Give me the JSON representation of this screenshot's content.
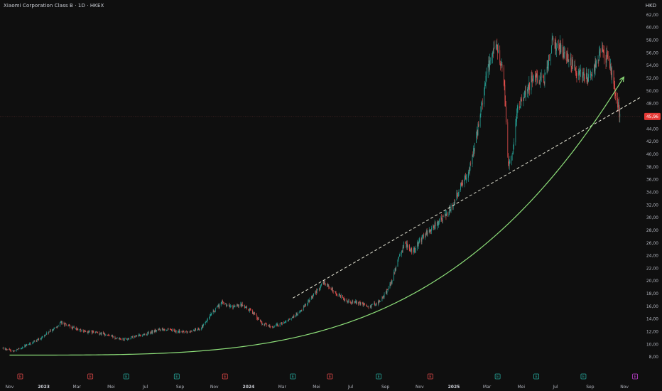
{
  "header": {
    "title": "Xiaomi Corporation Class B · 1D · HKEX",
    "currency": "HKD"
  },
  "colors": {
    "background": "#0f0f0f",
    "up": "#26a69a",
    "down": "#ef5350",
    "curve": "#8ee07a",
    "trendline": "#e8e8d8",
    "price_label_bg": "#e53935",
    "event_earnings_red": "#e04848",
    "event_dividend_green": "#26a69a",
    "event_purple": "#c03fd0"
  },
  "chart_data": {
    "type": "candlestick",
    "x_range": [
      "2022-10-15",
      "2025-11-30"
    ],
    "ylim": [
      6,
      63
    ],
    "y_ticks": [
      {
        "value": 62,
        "label": "62,00"
      },
      {
        "value": 60,
        "label": "60,00"
      },
      {
        "value": 58,
        "label": "58,00"
      },
      {
        "value": 56,
        "label": "56,00"
      },
      {
        "value": 54,
        "label": "54,00"
      },
      {
        "value": 52,
        "label": "52,00"
      },
      {
        "value": 50,
        "label": "50,00"
      },
      {
        "value": 48,
        "label": "48,00"
      },
      {
        "value": 44,
        "label": "44,00"
      },
      {
        "value": 42,
        "label": "42,00"
      },
      {
        "value": 40,
        "label": "40,00"
      },
      {
        "value": 38,
        "label": "38,00"
      },
      {
        "value": 36,
        "label": "36,00"
      },
      {
        "value": 34,
        "label": "34,00"
      },
      {
        "value": 32,
        "label": "32,00"
      },
      {
        "value": 30,
        "label": "30,00"
      },
      {
        "value": 28,
        "label": "28,00"
      },
      {
        "value": 26,
        "label": "26,00"
      },
      {
        "value": 24,
        "label": "24,00"
      },
      {
        "value": 22,
        "label": "22,00"
      },
      {
        "value": 20,
        "label": "20,00"
      },
      {
        "value": 18,
        "label": "18,00"
      },
      {
        "value": 16,
        "label": "16,00"
      },
      {
        "value": 14,
        "label": "14,00"
      },
      {
        "value": 12,
        "label": "12,00"
      },
      {
        "value": 10,
        "label": "10,00"
      },
      {
        "value": 8,
        "label": "8,00"
      }
    ],
    "x_ticks": [
      {
        "date": "2022-11-01",
        "label": "Nov",
        "year": false
      },
      {
        "date": "2023-01-01",
        "label": "2023",
        "year": true
      },
      {
        "date": "2023-03-01",
        "label": "Mar",
        "year": false
      },
      {
        "date": "2023-05-01",
        "label": "Mei",
        "year": false
      },
      {
        "date": "2023-07-01",
        "label": "Jul",
        "year": false
      },
      {
        "date": "2023-09-01",
        "label": "Sep",
        "year": false
      },
      {
        "date": "2023-11-01",
        "label": "Nov",
        "year": false
      },
      {
        "date": "2024-01-01",
        "label": "2024",
        "year": true
      },
      {
        "date": "2024-03-01",
        "label": "Mar",
        "year": false
      },
      {
        "date": "2024-05-01",
        "label": "Mei",
        "year": false
      },
      {
        "date": "2024-07-01",
        "label": "Jul",
        "year": false
      },
      {
        "date": "2024-09-01",
        "label": "Sep",
        "year": false
      },
      {
        "date": "2024-11-01",
        "label": "Nov",
        "year": false
      },
      {
        "date": "2025-01-01",
        "label": "2025",
        "year": true
      },
      {
        "date": "2025-03-01",
        "label": "Mar",
        "year": false
      },
      {
        "date": "2025-05-01",
        "label": "Mei",
        "year": false
      },
      {
        "date": "2025-07-01",
        "label": "Jul",
        "year": false
      },
      {
        "date": "2025-09-01",
        "label": "Sep",
        "year": false
      },
      {
        "date": "2025-11-01",
        "label": "Nov",
        "year": false
      }
    ],
    "price_path": [
      [
        "2022-10-20",
        9.4
      ],
      [
        "2022-11-10",
        8.9
      ],
      [
        "2022-11-30",
        9.8
      ],
      [
        "2022-12-20",
        10.6
      ],
      [
        "2023-01-15",
        12.2
      ],
      [
        "2023-02-01",
        13.4
      ],
      [
        "2023-02-20",
        12.6
      ],
      [
        "2023-03-15",
        12.0
      ],
      [
        "2023-04-10",
        11.8
      ],
      [
        "2023-05-05",
        11.2
      ],
      [
        "2023-05-25",
        10.8
      ],
      [
        "2023-06-15",
        11.3
      ],
      [
        "2023-07-05",
        11.7
      ],
      [
        "2023-07-31",
        12.5
      ],
      [
        "2023-08-20",
        12.1
      ],
      [
        "2023-09-15",
        11.9
      ],
      [
        "2023-10-10",
        12.7
      ],
      [
        "2023-10-31",
        15.2
      ],
      [
        "2023-11-15",
        16.6
      ],
      [
        "2023-12-05",
        15.8
      ],
      [
        "2023-12-20",
        16.2
      ],
      [
        "2024-01-10",
        15.0
      ],
      [
        "2024-01-25",
        13.3
      ],
      [
        "2024-02-10",
        12.7
      ],
      [
        "2024-02-25",
        13.1
      ],
      [
        "2024-03-15",
        14.0
      ],
      [
        "2024-04-05",
        15.4
      ],
      [
        "2024-04-25",
        17.8
      ],
      [
        "2024-05-15",
        19.8
      ],
      [
        "2024-06-05",
        18.0
      ],
      [
        "2024-06-25",
        16.9
      ],
      [
        "2024-07-15",
        16.5
      ],
      [
        "2024-08-05",
        16.0
      ],
      [
        "2024-08-25",
        17.0
      ],
      [
        "2024-09-10",
        19.5
      ],
      [
        "2024-09-25",
        23.5
      ],
      [
        "2024-10-05",
        26.0
      ],
      [
        "2024-10-20",
        24.5
      ],
      [
        "2024-11-05",
        26.8
      ],
      [
        "2024-11-25",
        28.5
      ],
      [
        "2024-12-15",
        30.2
      ],
      [
        "2024-12-31",
        32.0
      ],
      [
        "2025-01-15",
        35.5
      ],
      [
        "2025-01-31",
        38.0
      ],
      [
        "2025-02-15",
        45.0
      ],
      [
        "2025-02-28",
        53.0
      ],
      [
        "2025-03-10",
        55.5
      ],
      [
        "2025-03-20",
        57.0
      ],
      [
        "2025-03-31",
        52.0
      ],
      [
        "2025-04-08",
        38.0
      ],
      [
        "2025-04-15",
        40.0
      ],
      [
        "2025-04-25",
        47.5
      ],
      [
        "2025-05-10",
        50.0
      ],
      [
        "2025-05-25",
        52.5
      ],
      [
        "2025-06-10",
        51.5
      ],
      [
        "2025-06-25",
        57.5
      ],
      [
        "2025-07-10",
        57.0
      ],
      [
        "2025-07-25",
        55.0
      ],
      [
        "2025-08-10",
        53.0
      ],
      [
        "2025-08-25",
        52.0
      ],
      [
        "2025-09-05",
        52.5
      ],
      [
        "2025-09-20",
        56.5
      ],
      [
        "2025-10-05",
        54.5
      ],
      [
        "2025-10-15",
        50.5
      ],
      [
        "2025-10-24",
        45.96
      ]
    ],
    "last_price": {
      "value": 45.96,
      "label": "45,96"
    },
    "trendline": {
      "start": [
        "2024-03-20",
        17.3
      ],
      "end": [
        "2025-11-30",
        49.0
      ],
      "style": "dashed"
    },
    "curve": {
      "start": [
        "2022-11-01",
        8.3
      ],
      "end": [
        "2025-10-31",
        52.2
      ],
      "exponent": 3.6,
      "arrow": true
    },
    "events": [
      {
        "date": "2022-11-20",
        "type": "E",
        "color": "red"
      },
      {
        "date": "2023-03-25",
        "type": "E",
        "color": "red"
      },
      {
        "date": "2023-05-28",
        "type": "E",
        "color": "green"
      },
      {
        "date": "2023-08-26",
        "type": "E",
        "color": "green"
      },
      {
        "date": "2023-11-20",
        "type": "E",
        "color": "red"
      },
      {
        "date": "2024-03-20",
        "type": "E",
        "color": "green"
      },
      {
        "date": "2024-05-25",
        "type": "E",
        "color": "red"
      },
      {
        "date": "2024-08-20",
        "type": "E",
        "color": "green"
      },
      {
        "date": "2024-11-20",
        "type": "E",
        "color": "red"
      },
      {
        "date": "2025-03-20",
        "type": "E",
        "color": "green"
      },
      {
        "date": "2025-05-28",
        "type": "E",
        "color": "green"
      },
      {
        "date": "2025-08-20",
        "type": "E",
        "color": "green"
      },
      {
        "date": "2025-11-20",
        "type": "E",
        "color": "purple"
      }
    ]
  }
}
